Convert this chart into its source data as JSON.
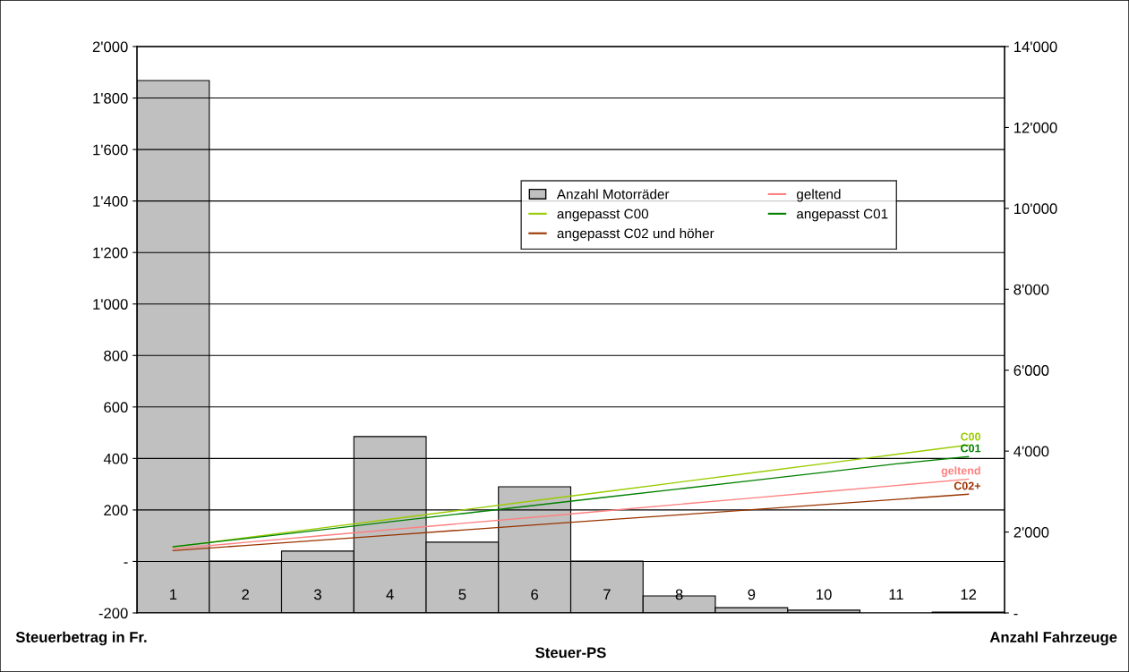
{
  "chart_data": {
    "type": "bar",
    "xlabel": "Steuer-PS",
    "ylabel": "Steuerbetrag in Fr.",
    "y2label": "Anzahl Fahrzeuge",
    "categories": [
      "1",
      "2",
      "3",
      "4",
      "5",
      "6",
      "7",
      "8",
      "9",
      "10",
      "11",
      "12"
    ],
    "series": [
      {
        "name": "Anzahl Motorräder",
        "axis": "y2",
        "color": "#c0c0c0",
        "values": [
          13160,
          1280,
          1530,
          4360,
          1750,
          3120,
          1280,
          420,
          130,
          70,
          null,
          20
        ]
      },
      {
        "name": "geltend",
        "type": "line",
        "color": "#ff8080",
        "values": [
          49,
          74,
          99,
          123,
          148,
          172,
          197,
          222,
          246,
          271,
          295,
          320
        ]
      },
      {
        "name": "angepasst C00",
        "type": "line",
        "color": "#99cc00",
        "values": [
          56,
          92,
          128,
          164,
          200,
          236,
          272,
          308,
          344,
          380,
          416,
          452
        ]
      },
      {
        "name": "angepasst C01",
        "type": "line",
        "color": "#008000",
        "values": [
          57,
          89,
          121,
          154,
          186,
          218,
          250,
          282,
          314,
          346,
          379,
          407
        ]
      },
      {
        "name": "angepasst C02 und höher",
        "type": "line",
        "color": "#993300",
        "values": [
          42,
          62,
          82,
          102,
          122,
          142,
          162,
          181,
          201,
          221,
          241,
          261
        ]
      }
    ],
    "annotations": [
      {
        "text": "C00",
        "x": "12",
        "y": 452
      },
      {
        "text": "C01",
        "x": "12",
        "y": 407
      },
      {
        "text": "geltend",
        "x": "12",
        "y": 320
      },
      {
        "text": "C02+",
        "x": "12",
        "y": 261
      }
    ],
    "ylim": [
      -200,
      2000
    ],
    "yticks": [
      -200,
      {
        "value": 0,
        "label": "-"
      },
      200,
      400,
      600,
      800,
      {
        "value": 1000,
        "label": "1'000"
      },
      {
        "value": 1200,
        "label": "1'200"
      },
      {
        "value": 1400,
        "label": "1'400"
      },
      {
        "value": 1600,
        "label": "1'600"
      },
      {
        "value": 1800,
        "label": "1'800"
      },
      {
        "value": 2000,
        "label": "2'000"
      }
    ],
    "y2lim": [
      0,
      14000
    ],
    "y2ticks": [
      {
        "value": 0,
        "label": "-"
      },
      {
        "value": 2000,
        "label": "2'000"
      },
      {
        "value": 4000,
        "label": "4'000"
      },
      {
        "value": 6000,
        "label": "6'000"
      },
      {
        "value": 8000,
        "label": "8'000"
      },
      {
        "value": 10000,
        "label": "10'000"
      },
      {
        "value": 12000,
        "label": "12'000"
      },
      {
        "value": 14000,
        "label": "14'000"
      }
    ],
    "grid": "y",
    "legend": "top right",
    "marker": "none",
    "line_style": "solid"
  }
}
